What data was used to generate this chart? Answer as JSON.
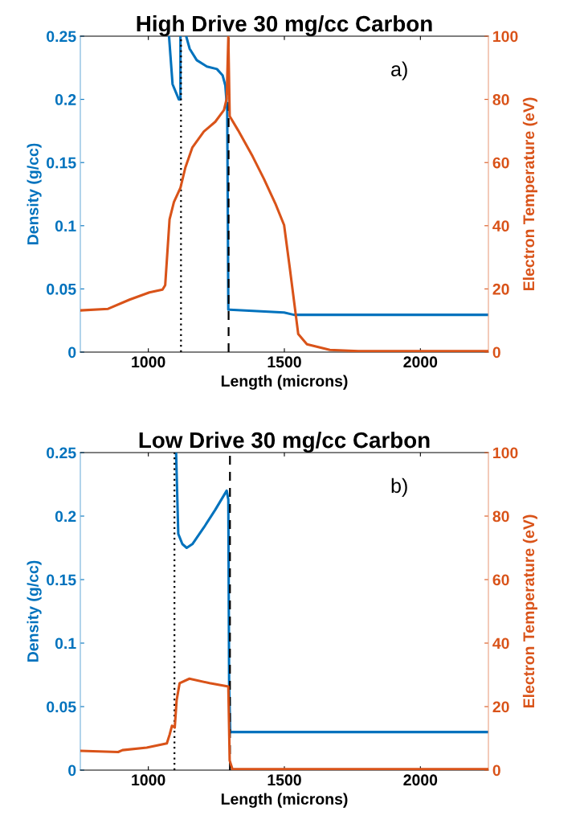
{
  "chart_data": [
    {
      "type": "line",
      "title": "High Drive 30 mg/cc Carbon",
      "xlabel": "Length (microns)",
      "ylabel": "Density (g/cc)",
      "y2label": "Electron Temperature (eV)",
      "annotations": [
        "a)"
      ],
      "xlim": [
        750,
        2250
      ],
      "xticks": [
        1000,
        1500,
        2000
      ],
      "ylim": [
        0,
        0.25
      ],
      "yticks": [
        0,
        0.05,
        0.1,
        0.15,
        0.2,
        0.25
      ],
      "y2lim": [
        0,
        100
      ],
      "y2ticks": [
        0,
        20,
        40,
        60,
        80,
        100
      ],
      "marker": "none",
      "line_style": "solid",
      "series": [
        {
          "color": "#0072bd",
          "x": [
            1076,
            1089,
            1112,
            1118,
            1118,
            null,
            1139,
            1152,
            1178,
            1215,
            1252,
            1273,
            1283,
            1290,
            1294,
            1299,
            1499,
            1535,
            2250
          ],
          "values": [
            0.25,
            0.212,
            0.2,
            0.2,
            0.25,
            null,
            0.25,
            0.24,
            0.231,
            0.226,
            0.224,
            0.219,
            0.211,
            0.191,
            0.0336,
            0.0336,
            0.0313,
            0.0295,
            0.0295
          ]
        },
        {
          "color": "#d95319",
          "axis": "y2",
          "x": [
            750,
            852,
            931,
            1004,
            1052,
            1062,
            1078,
            1094,
            1118,
            1136,
            1162,
            1204,
            1246,
            1278,
            1288,
            1294,
            1299,
            1330,
            1383,
            1425,
            1467,
            1499,
            1520,
            1551,
            1583,
            1667,
            1772,
            2250
          ],
          "values": [
            13.2,
            13.7,
            16.6,
            18.9,
            19.8,
            21.2,
            42,
            47.5,
            52,
            58.4,
            64.8,
            69.8,
            72.9,
            76.6,
            80.2,
            99.7,
            74.7,
            70.2,
            62,
            54.8,
            47,
            40.2,
            26.6,
            5.7,
            2.5,
            0.7,
            0.3,
            0.3
          ]
        }
      ],
      "ref_lines": [
        {
          "axis": "x",
          "value": 1120,
          "color": "#000000",
          "line_style": "dotted"
        },
        {
          "axis": "x",
          "value": 1295,
          "color": "#000000",
          "line_style": "dashed"
        }
      ]
    },
    {
      "type": "line",
      "title": "Low Drive 30 mg/cc Carbon",
      "xlabel": "Length (microns)",
      "ylabel": "Density (g/cc)",
      "y2label": "Electron Temperature (eV)",
      "annotations": [
        "b)"
      ],
      "xlim": [
        750,
        2250
      ],
      "xticks": [
        1000,
        1500,
        2000
      ],
      "ylim": [
        0,
        0.25
      ],
      "yticks": [
        0,
        0.05,
        0.1,
        0.15,
        0.2,
        0.25
      ],
      "y2lim": [
        0,
        100
      ],
      "y2ticks": [
        0,
        20,
        40,
        60,
        80,
        100
      ],
      "marker": "none",
      "line_style": "solid",
      "series": [
        {
          "color": "#0072bd",
          "x": [
            1102,
            1110,
            1125,
            1141,
            1162,
            1204,
            1246,
            1288,
            1294,
            1297,
            1301,
            2250
          ],
          "values": [
            0.25,
            0.186,
            0.178,
            0.175,
            0.178,
            0.191,
            0.205,
            0.22,
            0.213,
            0.066,
            0.03,
            0.03
          ]
        },
        {
          "color": "#d95319",
          "axis": "y2",
          "x": [
            750,
            889,
            905,
            994,
            1068,
            1078,
            1087,
            1097,
            1104,
            1115,
            1151,
            1225,
            1294,
            1299,
            1309,
            2250
          ],
          "values": [
            6.1,
            5.7,
            6.3,
            7.1,
            8.4,
            11.1,
            14,
            13.4,
            22,
            27.4,
            28.8,
            27.4,
            26.3,
            3,
            0.3,
            0.3
          ]
        }
      ],
      "ref_lines": [
        {
          "axis": "x",
          "value": 1096,
          "color": "#000000",
          "line_style": "dotted"
        },
        {
          "axis": "x",
          "value": 1300,
          "color": "#000000",
          "line_style": "dashed"
        }
      ]
    }
  ]
}
